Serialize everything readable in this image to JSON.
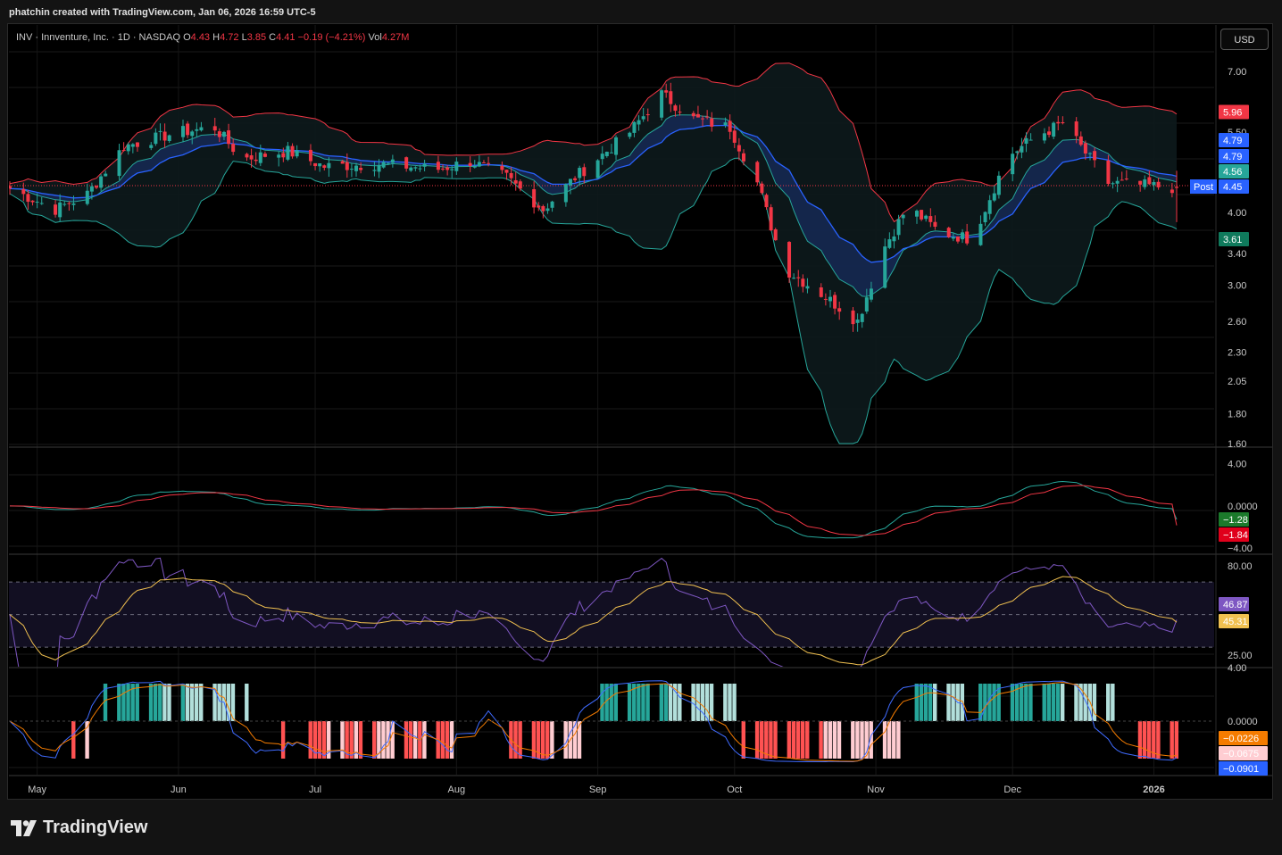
{
  "attribution": "phatchin created with TradingView.com, Jan 06, 2026 16:59 UTC-5",
  "legend": {
    "symbol": "INV · Innventure, Inc. · 1D · NASDAQ",
    "o_label": "O",
    "o_value": "4.43",
    "h_label": "H",
    "h_value": "4.72",
    "l_label": "L",
    "l_value": "3.85",
    "c_label": "C",
    "c_value": "4.41",
    "change": "−0.19 (−4.21%)",
    "vol_label": "Vol",
    "vol_value": "4.27M"
  },
  "currency_button": "USD",
  "brand": "TradingView",
  "colors": {
    "up": "#26a69a",
    "down": "#f23645",
    "upper_band": "#f23645",
    "lower_band": "#26a69a",
    "ema_blue": "#2962ff",
    "ema_green": "#26a69a",
    "rsi": "#7e57c2",
    "rsi_ma": "#f0c050",
    "hist_up": "#26a69a",
    "hist_up_light": "#b2dfdb",
    "hist_down": "#ff5252",
    "hist_down_light": "#ffcdd2"
  },
  "chart_data": [
    {
      "type": "candlestick",
      "title": "INV · Innventure, Inc. · 1D · NASDAQ",
      "scale": "log",
      "ylim": [
        1.6,
        7.3
      ],
      "y_ticks": [
        "7.00",
        "5.50",
        "4.00",
        "3.40",
        "3.00",
        "2.60",
        "2.30",
        "2.05",
        "1.80",
        "1.60"
      ],
      "x_ticks": [
        "May",
        "Jun",
        "Jul",
        "Aug",
        "Sep",
        "Oct",
        "Nov",
        "Dec",
        "2026"
      ],
      "close_anchors": {
        "dates": [
          "2025-04-25",
          "2025-05-05",
          "2025-05-12",
          "2025-05-20",
          "2025-06-01",
          "2025-06-09",
          "2025-06-15",
          "2025-06-25",
          "2025-07-03",
          "2025-07-15",
          "2025-07-28",
          "2025-08-04",
          "2025-08-12",
          "2025-08-20",
          "2025-08-27",
          "2025-09-08",
          "2025-09-15",
          "2025-09-22",
          "2025-09-30",
          "2025-10-06",
          "2025-10-12",
          "2025-10-20",
          "2025-10-28",
          "2025-11-03",
          "2025-11-08",
          "2025-11-15",
          "2025-11-22",
          "2025-11-30",
          "2025-12-06",
          "2025-12-12",
          "2025-12-22",
          "2026-01-06"
        ],
        "values": [
          4.4,
          4.05,
          4.3,
          5.2,
          5.5,
          5.6,
          4.95,
          5.1,
          4.8,
          4.85,
          4.75,
          4.9,
          4.6,
          4.05,
          4.6,
          5.5,
          6.4,
          5.8,
          5.6,
          4.5,
          3.2,
          2.9,
          2.6,
          3.5,
          4.1,
          3.7,
          3.6,
          5.0,
          5.4,
          5.7,
          4.5,
          4.41
        ]
      },
      "series": [
        {
          "name": "upper",
          "value": 5.96
        },
        {
          "name": "ema1",
          "value": 4.79
        },
        {
          "name": "ema2",
          "value": 4.79
        },
        {
          "name": "ema3",
          "value": 4.56
        },
        {
          "name": "price",
          "value": 4.45
        },
        {
          "name": "lower",
          "value": 3.61
        }
      ],
      "post_label": "Post",
      "value_labels": [
        "5.96",
        "4.79",
        "4.79",
        "4.56",
        "4.45",
        "3.61"
      ]
    },
    {
      "type": "line",
      "series": [
        {
          "name": "macd",
          "value": -1.28
        },
        {
          "name": "signal",
          "value": -1.84
        }
      ],
      "ylim": [
        -4.5,
        5.5
      ],
      "y_ticks": [
        "4.00",
        "0.0000",
        "−4.00"
      ],
      "value_labels": [
        "−1.28",
        "−1.84"
      ]
    },
    {
      "type": "line",
      "series": [
        {
          "name": "rsi",
          "value": 46.87
        },
        {
          "name": "rsi_ma",
          "value": 45.31
        }
      ],
      "ylim": [
        18,
        86
      ],
      "bands": [
        30,
        70
      ],
      "y_ticks": [
        "80.00",
        "25.00"
      ],
      "value_labels": [
        "46.87",
        "45.31"
      ]
    },
    {
      "type": "bar",
      "series": [
        {
          "name": "hist",
          "value": -0.0226
        },
        {
          "name": "line1",
          "value": -0.0675
        },
        {
          "name": "line2",
          "value": -0.0901
        }
      ],
      "y_ticks": [
        "4.00",
        "0.0000"
      ],
      "value_labels": [
        "−0.0226",
        "−0.0675",
        "−0.0901"
      ]
    }
  ]
}
